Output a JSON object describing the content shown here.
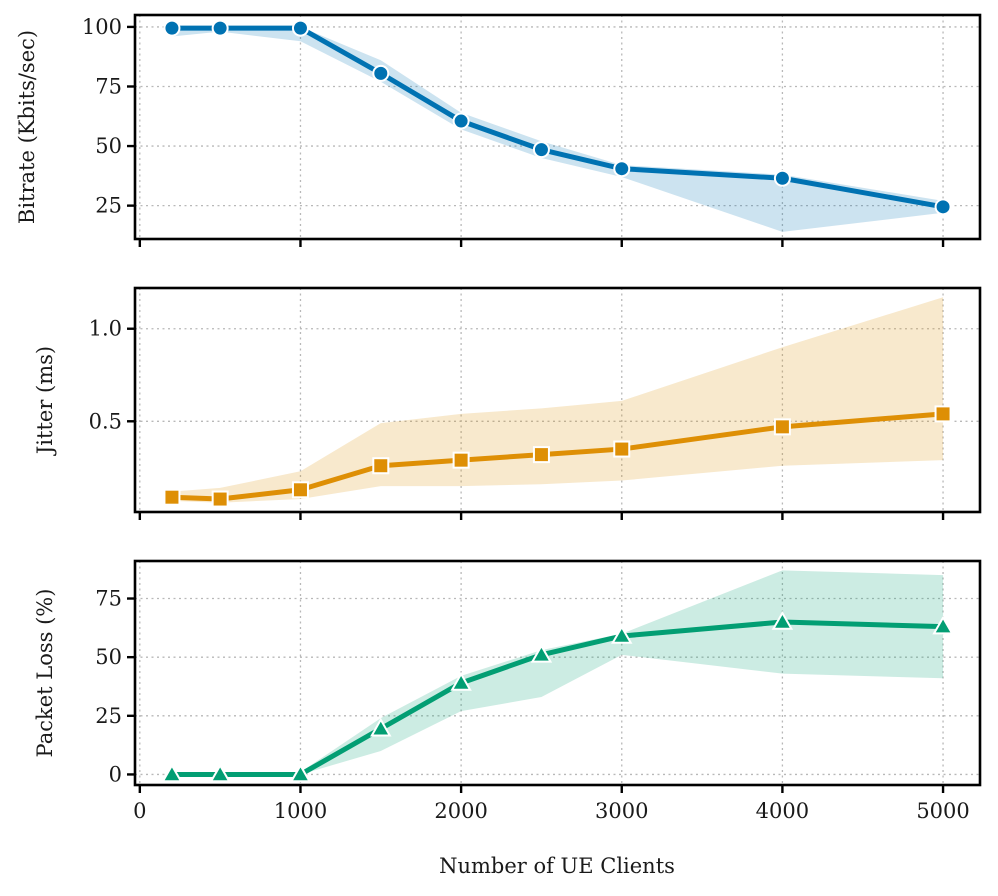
{
  "chart_data": [
    {
      "type": "line",
      "ylabel": "Bitrate (Kbits/sec)",
      "xlabel": "",
      "series": [
        {
          "name": "Bitrate",
          "x": [
            200,
            500,
            1000,
            1500,
            2000,
            2500,
            3000,
            4000,
            5000
          ],
          "values": [
            99.5,
            99.5,
            99.5,
            80.5,
            60.5,
            48.5,
            40.5,
            36.5,
            24.5
          ],
          "lower": [
            96,
            98,
            94,
            77,
            57,
            45,
            37,
            14,
            22
          ],
          "upper": [
            100,
            100,
            100,
            86,
            64,
            52,
            42,
            38,
            27
          ],
          "marker": "circle",
          "color": "#0072b2",
          "band_color": "#0072b2"
        }
      ],
      "ylim": [
        11,
        105
      ],
      "yticks": [
        25,
        50,
        75,
        100
      ],
      "ytick_labels": [
        "25",
        "50",
        "75",
        "100"
      ],
      "xlim": [
        -30,
        5230
      ],
      "xticks": [
        0,
        1000,
        2000,
        3000,
        4000,
        5000
      ],
      "show_xtick_labels": false,
      "grid": true
    },
    {
      "type": "line",
      "ylabel": "Jitter (ms)",
      "xlabel": "",
      "series": [
        {
          "name": "Jitter",
          "x": [
            200,
            500,
            1000,
            1500,
            2000,
            2500,
            3000,
            4000,
            5000
          ],
          "values": [
            0.09,
            0.08,
            0.13,
            0.26,
            0.29,
            0.32,
            0.35,
            0.47,
            0.54
          ],
          "lower": [
            0.07,
            0.06,
            0.08,
            0.15,
            0.15,
            0.16,
            0.18,
            0.26,
            0.29
          ],
          "upper": [
            0.12,
            0.14,
            0.23,
            0.49,
            0.54,
            0.57,
            0.61,
            0.9,
            1.17
          ],
          "marker": "square",
          "color": "#de8f05",
          "band_color": "#de8f05"
        }
      ],
      "ylim": [
        0.01,
        1.22
      ],
      "yticks": [
        0.5,
        1.0
      ],
      "ytick_labels": [
        "0.5",
        "1.0"
      ],
      "xlim": [
        -30,
        5230
      ],
      "xticks": [
        0,
        1000,
        2000,
        3000,
        4000,
        5000
      ],
      "show_xtick_labels": false,
      "grid": true
    },
    {
      "type": "line",
      "ylabel": "Packet Loss (%)",
      "xlabel": "Number of UE Clients",
      "series": [
        {
          "name": "Packet Loss",
          "x": [
            200,
            500,
            1000,
            1500,
            2000,
            2500,
            3000,
            4000,
            5000
          ],
          "values": [
            0,
            0,
            0,
            19.5,
            39,
            51,
            59,
            65,
            63
          ],
          "lower": [
            0,
            0,
            0,
            10,
            27,
            33,
            51,
            43,
            41
          ],
          "upper": [
            0,
            0,
            1,
            24,
            42,
            53,
            60,
            87,
            85
          ],
          "marker": "triangle",
          "color": "#029e73",
          "band_color": "#029e73"
        }
      ],
      "ylim": [
        -4.5,
        91
      ],
      "yticks": [
        0,
        25,
        50,
        75
      ],
      "ytick_labels": [
        "0",
        "25",
        "50",
        "75"
      ],
      "xlim": [
        -30,
        5230
      ],
      "xticks": [
        0,
        1000,
        2000,
        3000,
        4000,
        5000
      ],
      "xtick_labels": [
        "0",
        "1000",
        "2000",
        "3000",
        "4000",
        "5000"
      ],
      "show_xtick_labels": true,
      "grid": true
    }
  ]
}
